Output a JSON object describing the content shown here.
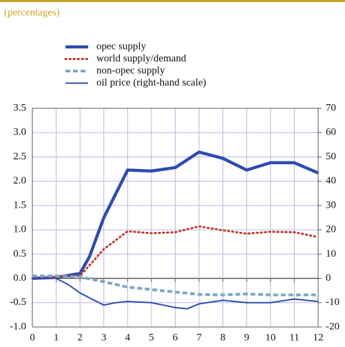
{
  "chart_data": {
    "type": "line",
    "subtitle": "(percentages)",
    "xlim": [
      0,
      12
    ],
    "xticks": [
      0,
      1,
      2,
      3,
      4,
      5,
      6,
      7,
      8,
      9,
      10,
      11,
      12
    ],
    "ylim": [
      -1.0,
      3.5
    ],
    "yticks": [
      {
        "value": -1.0,
        "label": "-1.0"
      },
      -0.5,
      {
        "value": 0,
        "label": "0.0"
      },
      0.5,
      {
        "value": 1.0,
        "label": "1.0"
      },
      1.5,
      {
        "value": 2.0,
        "label": "2.0"
      },
      2.5,
      {
        "value": 3.0,
        "label": "3.0"
      },
      3.5
    ],
    "y2lim": [
      -20,
      70
    ],
    "y2ticks": [
      -20,
      -10,
      0,
      10,
      20,
      30,
      40,
      50,
      60,
      70
    ],
    "grid": true,
    "series": [
      {
        "name": "opec supply",
        "color": "#2e4bb0",
        "style": "thick",
        "x": [
          0,
          1,
          2,
          2.4,
          3,
          4,
          5,
          6,
          7,
          8,
          9,
          10,
          11,
          12
        ],
        "values": [
          0,
          0.02,
          0.1,
          0.45,
          1.25,
          2.23,
          2.21,
          2.28,
          2.6,
          2.47,
          2.23,
          2.38,
          2.38,
          2.17
        ]
      },
      {
        "name": "world supply/demand",
        "color": "#c0392b",
        "style": "dotted",
        "x": [
          0,
          1,
          2,
          3,
          4,
          5,
          6,
          7,
          8,
          9,
          10,
          11,
          12
        ],
        "values": [
          0,
          0.03,
          0.05,
          0.6,
          0.97,
          0.93,
          0.95,
          1.07,
          0.99,
          0.92,
          0.96,
          0.95,
          0.85
        ]
      },
      {
        "name": "non-opec supply",
        "color": "#7fa7c0",
        "style": "dashed",
        "x": [
          0,
          1,
          2,
          3,
          4,
          5,
          6,
          7,
          8,
          9,
          10,
          11,
          12
        ],
        "values": [
          0.05,
          0.05,
          0.03,
          -0.07,
          -0.18,
          -0.23,
          -0.28,
          -0.33,
          -0.34,
          -0.32,
          -0.34,
          -0.34,
          -0.34
        ]
      },
      {
        "name": "oil price (right-hand scale)",
        "color": "#2e4bb0",
        "style": "thin",
        "axis": "y2",
        "x": [
          0,
          1,
          1.5,
          2,
          2.5,
          3,
          3.5,
          4,
          5,
          6,
          6.5,
          7,
          8,
          9,
          10,
          11,
          12
        ],
        "values": [
          0,
          0,
          -2.5,
          -6,
          -8.5,
          -11,
          -10,
          -9.5,
          -10,
          -12,
          -12.5,
          -10.5,
          -9,
          -10,
          -10,
          -8.5,
          -9.5
        ]
      }
    ]
  }
}
